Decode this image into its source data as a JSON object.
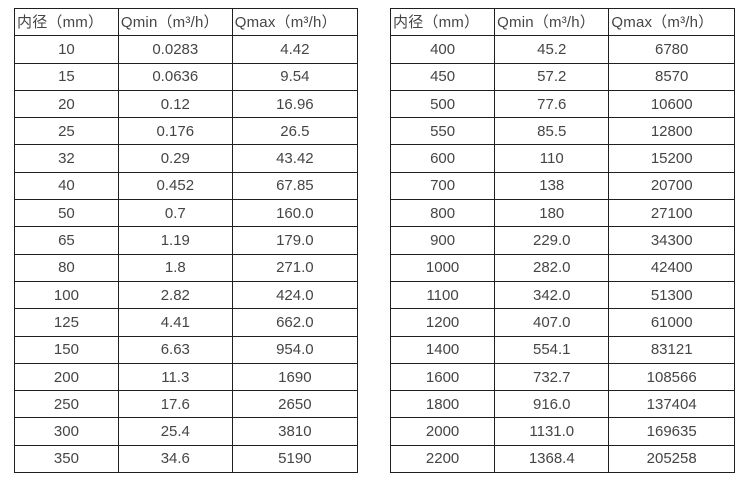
{
  "page": {
    "background_color": "#ffffff",
    "border_color": "#1f1f1f",
    "text_color": "#454545"
  },
  "table_left": {
    "headers": [
      "内径（mm）",
      "Qmin（m³/h）",
      "Qmax（m³/h）"
    ],
    "rows": [
      [
        "10",
        "0.0283",
        "4.42"
      ],
      [
        "15",
        "0.0636",
        "9.54"
      ],
      [
        "20",
        "0.12",
        "16.96"
      ],
      [
        "25",
        "0.176",
        "26.5"
      ],
      [
        "32",
        "0.29",
        "43.42"
      ],
      [
        "40",
        "0.452",
        "67.85"
      ],
      [
        "50",
        "0.7",
        "160.0"
      ],
      [
        "65",
        "1.19",
        "179.0"
      ],
      [
        "80",
        "1.8",
        "271.0"
      ],
      [
        "100",
        "2.82",
        "424.0"
      ],
      [
        "125",
        "4.41",
        "662.0"
      ],
      [
        "150",
        "6.63",
        "954.0"
      ],
      [
        "200",
        "11.3",
        "1690"
      ],
      [
        "250",
        "17.6",
        "2650"
      ],
      [
        "300",
        "25.4",
        "3810"
      ],
      [
        "350",
        "34.6",
        "5190"
      ]
    ]
  },
  "table_right": {
    "headers": [
      "内径（mm）",
      "Qmin（m³/h）",
      "Qmax（m³/h）"
    ],
    "rows": [
      [
        "400",
        "45.2",
        "6780"
      ],
      [
        "450",
        "57.2",
        "8570"
      ],
      [
        "500",
        "77.6",
        "10600"
      ],
      [
        "550",
        "85.5",
        "12800"
      ],
      [
        "600",
        "110",
        "15200"
      ],
      [
        "700",
        "138",
        "20700"
      ],
      [
        "800",
        "180",
        "27100"
      ],
      [
        "900",
        "229.0",
        "34300"
      ],
      [
        "1000",
        "282.0",
        "42400"
      ],
      [
        "1100",
        "342.0",
        "51300"
      ],
      [
        "1200",
        "407.0",
        "61000"
      ],
      [
        "1400",
        "554.1",
        "83121"
      ],
      [
        "1600",
        "732.7",
        "108566"
      ],
      [
        "1800",
        "916.0",
        "137404"
      ],
      [
        "2000",
        "1131.0",
        "169635"
      ],
      [
        "2200",
        "1368.4",
        "205258"
      ]
    ]
  }
}
